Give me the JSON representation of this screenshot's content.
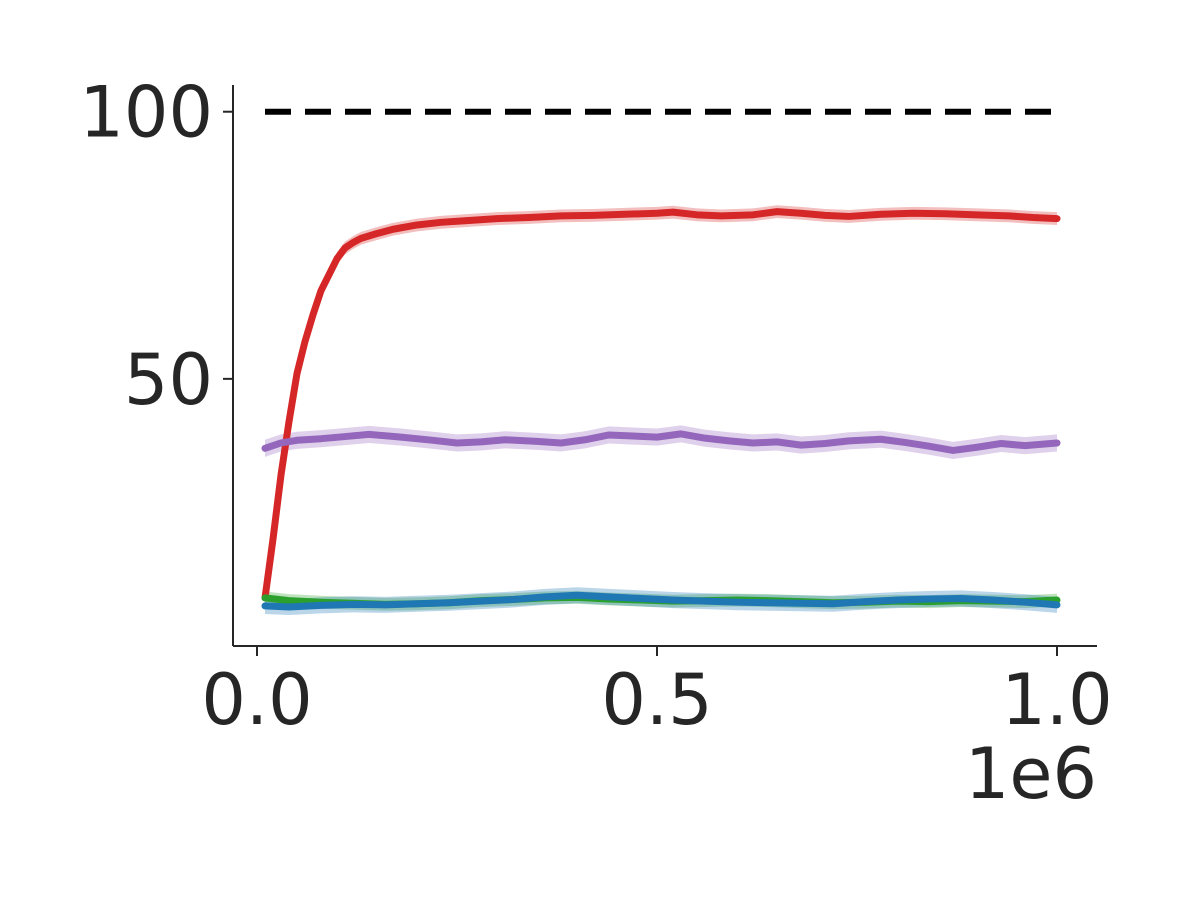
{
  "chart_data": {
    "type": "line",
    "title": "",
    "xlabel": "",
    "ylabel": "",
    "x_scale_label": "1e6",
    "xlim": [
      -0.03,
      1.05
    ],
    "ylim": [
      0,
      105
    ],
    "x_ticks": [
      {
        "value": 0.0,
        "label": "0.0"
      },
      {
        "value": 0.5,
        "label": "0.5"
      },
      {
        "value": 1.0,
        "label": "1.0"
      }
    ],
    "y_ticks": [
      {
        "value": 50,
        "label": "50"
      },
      {
        "value": 100,
        "label": "100"
      }
    ],
    "grid": false,
    "reference_line": {
      "y": 100,
      "x_range": [
        0.01,
        1.0
      ],
      "style": "dashed",
      "color": "#000000"
    },
    "series": [
      {
        "color": "#d62728",
        "band": 1.2,
        "points": [
          [
            0.01,
            9
          ],
          [
            0.02,
            20
          ],
          [
            0.03,
            32
          ],
          [
            0.04,
            42
          ],
          [
            0.05,
            51
          ],
          [
            0.06,
            57
          ],
          [
            0.07,
            62
          ],
          [
            0.08,
            66.5
          ],
          [
            0.09,
            69.5
          ],
          [
            0.1,
            72.5
          ],
          [
            0.11,
            74.5
          ],
          [
            0.12,
            75.5
          ],
          [
            0.13,
            76.3
          ],
          [
            0.15,
            77.2
          ],
          [
            0.17,
            78
          ],
          [
            0.2,
            78.8
          ],
          [
            0.23,
            79.3
          ],
          [
            0.26,
            79.6
          ],
          [
            0.3,
            80
          ],
          [
            0.34,
            80.2
          ],
          [
            0.38,
            80.5
          ],
          [
            0.42,
            80.6
          ],
          [
            0.46,
            80.8
          ],
          [
            0.5,
            81
          ],
          [
            0.52,
            81.2
          ],
          [
            0.55,
            80.7
          ],
          [
            0.58,
            80.5
          ],
          [
            0.62,
            80.7
          ],
          [
            0.65,
            81.3
          ],
          [
            0.68,
            81
          ],
          [
            0.71,
            80.6
          ],
          [
            0.74,
            80.4
          ],
          [
            0.78,
            80.8
          ],
          [
            0.82,
            81
          ],
          [
            0.86,
            80.9
          ],
          [
            0.9,
            80.7
          ],
          [
            0.94,
            80.5
          ],
          [
            0.97,
            80.2
          ],
          [
            1.0,
            80
          ]
        ]
      },
      {
        "color": "#9467bd",
        "band": 1.6,
        "points": [
          [
            0.01,
            37
          ],
          [
            0.03,
            38
          ],
          [
            0.05,
            38.5
          ],
          [
            0.08,
            38.8
          ],
          [
            0.11,
            39.2
          ],
          [
            0.14,
            39.6
          ],
          [
            0.18,
            39.1
          ],
          [
            0.22,
            38.5
          ],
          [
            0.25,
            38
          ],
          [
            0.28,
            38.2
          ],
          [
            0.31,
            38.6
          ],
          [
            0.35,
            38.3
          ],
          [
            0.38,
            38
          ],
          [
            0.41,
            38.6
          ],
          [
            0.44,
            39.5
          ],
          [
            0.47,
            39.3
          ],
          [
            0.5,
            39.1
          ],
          [
            0.53,
            39.7
          ],
          [
            0.56,
            38.9
          ],
          [
            0.59,
            38.4
          ],
          [
            0.62,
            38
          ],
          [
            0.65,
            38.2
          ],
          [
            0.68,
            37.6
          ],
          [
            0.71,
            37.9
          ],
          [
            0.74,
            38.4
          ],
          [
            0.78,
            38.7
          ],
          [
            0.81,
            38.1
          ],
          [
            0.84,
            37.4
          ],
          [
            0.87,
            36.6
          ],
          [
            0.9,
            37.2
          ],
          [
            0.93,
            37.9
          ],
          [
            0.96,
            37.5
          ],
          [
            1.0,
            38
          ]
        ]
      },
      {
        "color": "#2ca02c",
        "band": 1.2,
        "points": [
          [
            0.01,
            9
          ],
          [
            0.04,
            8.5
          ],
          [
            0.08,
            8.2
          ],
          [
            0.12,
            8
          ],
          [
            0.16,
            7.8
          ],
          [
            0.2,
            7.9
          ],
          [
            0.24,
            8.1
          ],
          [
            0.28,
            8.5
          ],
          [
            0.32,
            8.7
          ],
          [
            0.36,
            9
          ],
          [
            0.4,
            9.1
          ],
          [
            0.44,
            8.8
          ],
          [
            0.48,
            8.6
          ],
          [
            0.52,
            8.4
          ],
          [
            0.56,
            8.5
          ],
          [
            0.6,
            8.6
          ],
          [
            0.64,
            8.5
          ],
          [
            0.68,
            8.3
          ],
          [
            0.72,
            8.1
          ],
          [
            0.76,
            8.2
          ],
          [
            0.8,
            8.4
          ],
          [
            0.84,
            8.3
          ],
          [
            0.88,
            8.5
          ],
          [
            0.92,
            8.4
          ],
          [
            0.96,
            8.3
          ],
          [
            1.0,
            8.6
          ]
        ]
      },
      {
        "color": "#1f77b4",
        "band": 1.5,
        "points": [
          [
            0.01,
            7.5
          ],
          [
            0.04,
            7.3
          ],
          [
            0.08,
            7.6
          ],
          [
            0.12,
            7.8
          ],
          [
            0.16,
            7.7
          ],
          [
            0.2,
            7.9
          ],
          [
            0.24,
            8.1
          ],
          [
            0.28,
            8.4
          ],
          [
            0.32,
            8.7
          ],
          [
            0.36,
            9.2
          ],
          [
            0.4,
            9.5
          ],
          [
            0.44,
            9.2
          ],
          [
            0.48,
            8.9
          ],
          [
            0.52,
            8.6
          ],
          [
            0.56,
            8.4
          ],
          [
            0.6,
            8.2
          ],
          [
            0.64,
            8.1
          ],
          [
            0.68,
            8
          ],
          [
            0.72,
            7.9
          ],
          [
            0.76,
            8.3
          ],
          [
            0.8,
            8.6
          ],
          [
            0.84,
            8.8
          ],
          [
            0.88,
            8.9
          ],
          [
            0.92,
            8.6
          ],
          [
            0.96,
            8.2
          ],
          [
            1.0,
            7.7
          ]
        ]
      }
    ]
  }
}
